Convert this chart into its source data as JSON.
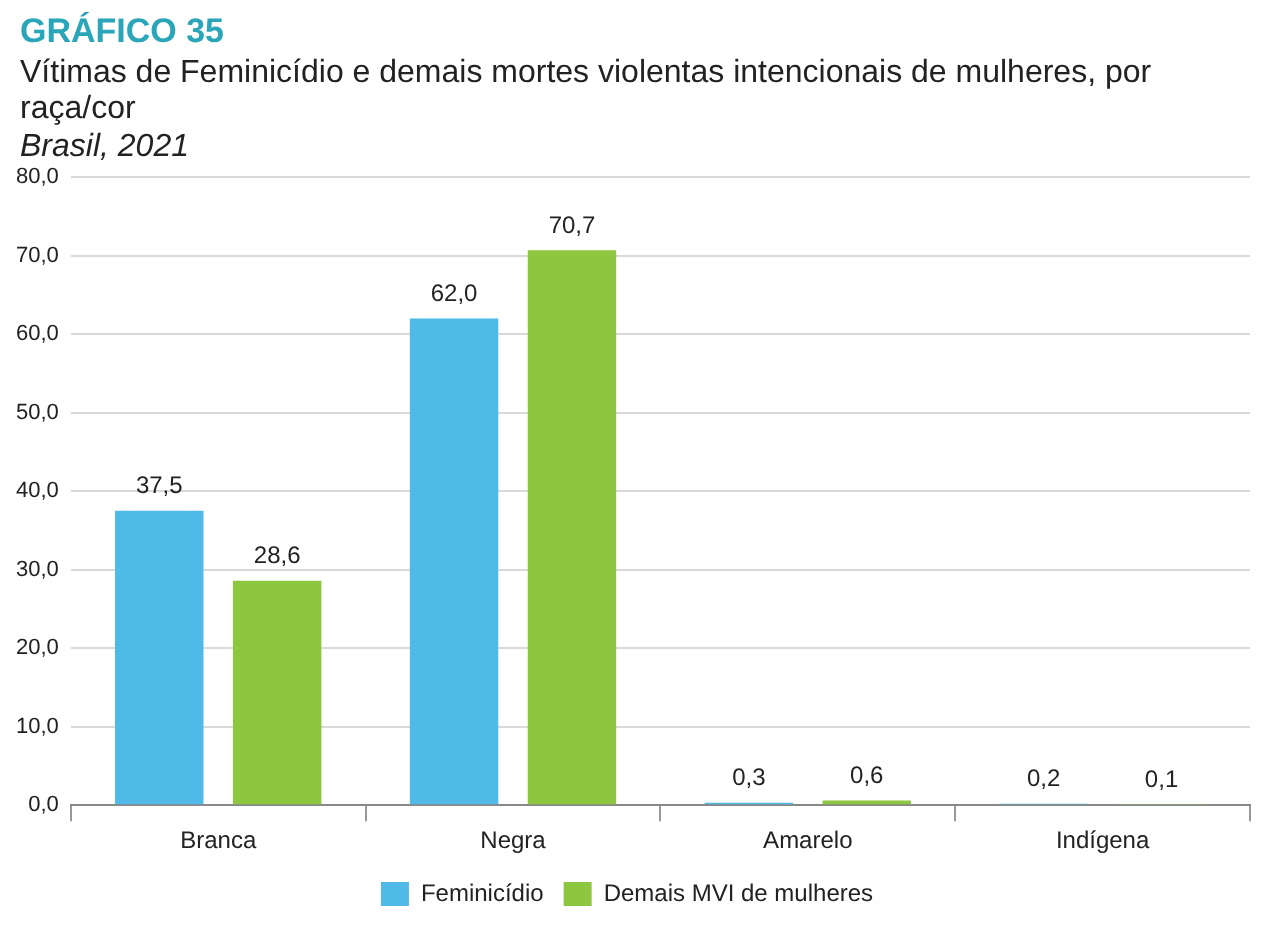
{
  "chart_data": {
    "type": "bar",
    "title": "GRÁFICO 35",
    "subtitle": "Vítimas de Feminicídio e demais mortes violentas intencionais de mulheres, por raça/cor",
    "annotations": [
      "Brasil, 2021"
    ],
    "categories": [
      "Branca",
      "Negra",
      "Amarelo",
      "Indígena"
    ],
    "series": [
      {
        "name": "Feminicídio",
        "color": "#4fb9e8",
        "values": [
          37.5,
          62.0,
          0.3,
          0.2
        ],
        "value_labels": [
          "37,5",
          "62,0",
          "0,3",
          "0,2"
        ]
      },
      {
        "name": "Demais MVI de mulheres",
        "color": "#8dc63f",
        "values": [
          28.6,
          70.7,
          0.6,
          0.1
        ],
        "value_labels": [
          "28,6",
          "70,7",
          "0,6",
          "0,1"
        ]
      }
    ],
    "ylim": [
      0,
      80
    ],
    "yticks": [
      {
        "value": 0,
        "label": "0,0"
      },
      {
        "value": 10,
        "label": "10,0"
      },
      {
        "value": 20,
        "label": "20,0"
      },
      {
        "value": 30,
        "label": "30,0"
      },
      {
        "value": 40,
        "label": "40,0"
      },
      {
        "value": 50,
        "label": "50,0"
      },
      {
        "value": 60,
        "label": "60,0"
      },
      {
        "value": 70,
        "label": "70,0"
      },
      {
        "value": 80,
        "label": "80,0"
      }
    ],
    "grid": "y",
    "legend": "bottom"
  }
}
